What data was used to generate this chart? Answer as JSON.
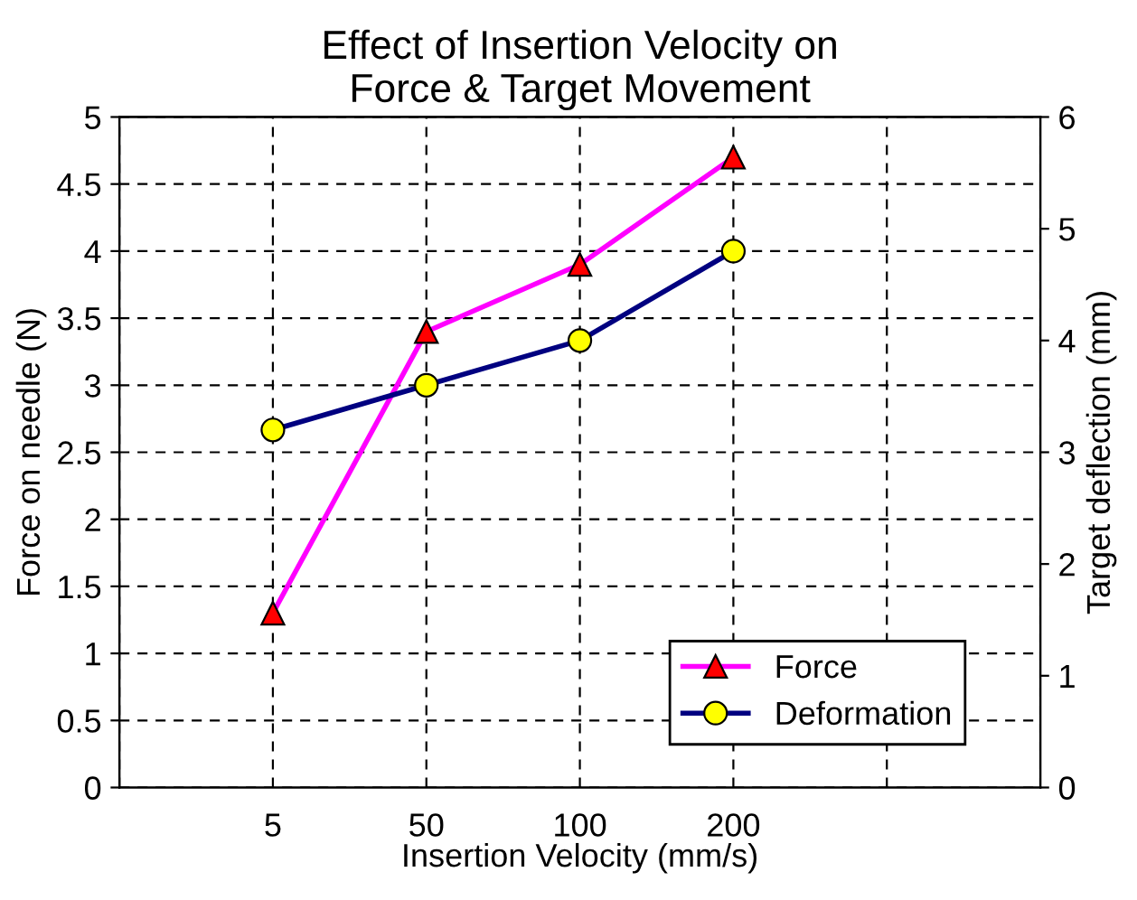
{
  "chart_data": {
    "type": "line",
    "title": "Effect of Insertion Velocity on\nForce & Target Movement",
    "xlabel": "Insertion Velocity (mm/s)",
    "ylabel": "Force on needle (N)",
    "y2label": "Target deflection (mm)",
    "categories": [
      null,
      "5",
      "50",
      "100",
      "200",
      null,
      null
    ],
    "series": [
      {
        "name": "Force",
        "color": "#ff00ff",
        "marker": "triangle",
        "colors": [
          "#ff0000",
          "#ff0000",
          "#ff0000",
          "#ff0000",
          "#ff0000",
          "#ff0000",
          "#ff0000"
        ],
        "values": [
          null,
          1.3,
          3.4,
          3.9,
          4.7,
          null,
          null
        ]
      },
      {
        "name": "Deformation",
        "color": "#000080",
        "marker": "circle",
        "colors": [
          "#ffff00",
          "#ffff00",
          "#ffff00",
          "#ffff00",
          "#ffff00",
          "#ffff00",
          "#ffff00"
        ],
        "axis": "y2",
        "values": [
          null,
          3.2,
          3.6,
          4.0,
          4.8,
          null,
          null
        ]
      }
    ],
    "ylim": [
      0,
      5
    ],
    "yticks": [
      0,
      0.5,
      1,
      1.5,
      2,
      2.5,
      3,
      3.5,
      4,
      4.5,
      5
    ],
    "y2lim": [
      0,
      6
    ],
    "y2ticks": [
      0,
      1,
      2,
      3,
      4,
      5,
      6
    ],
    "grid": true,
    "line_style": "solid",
    "legend": "bottom right"
  }
}
